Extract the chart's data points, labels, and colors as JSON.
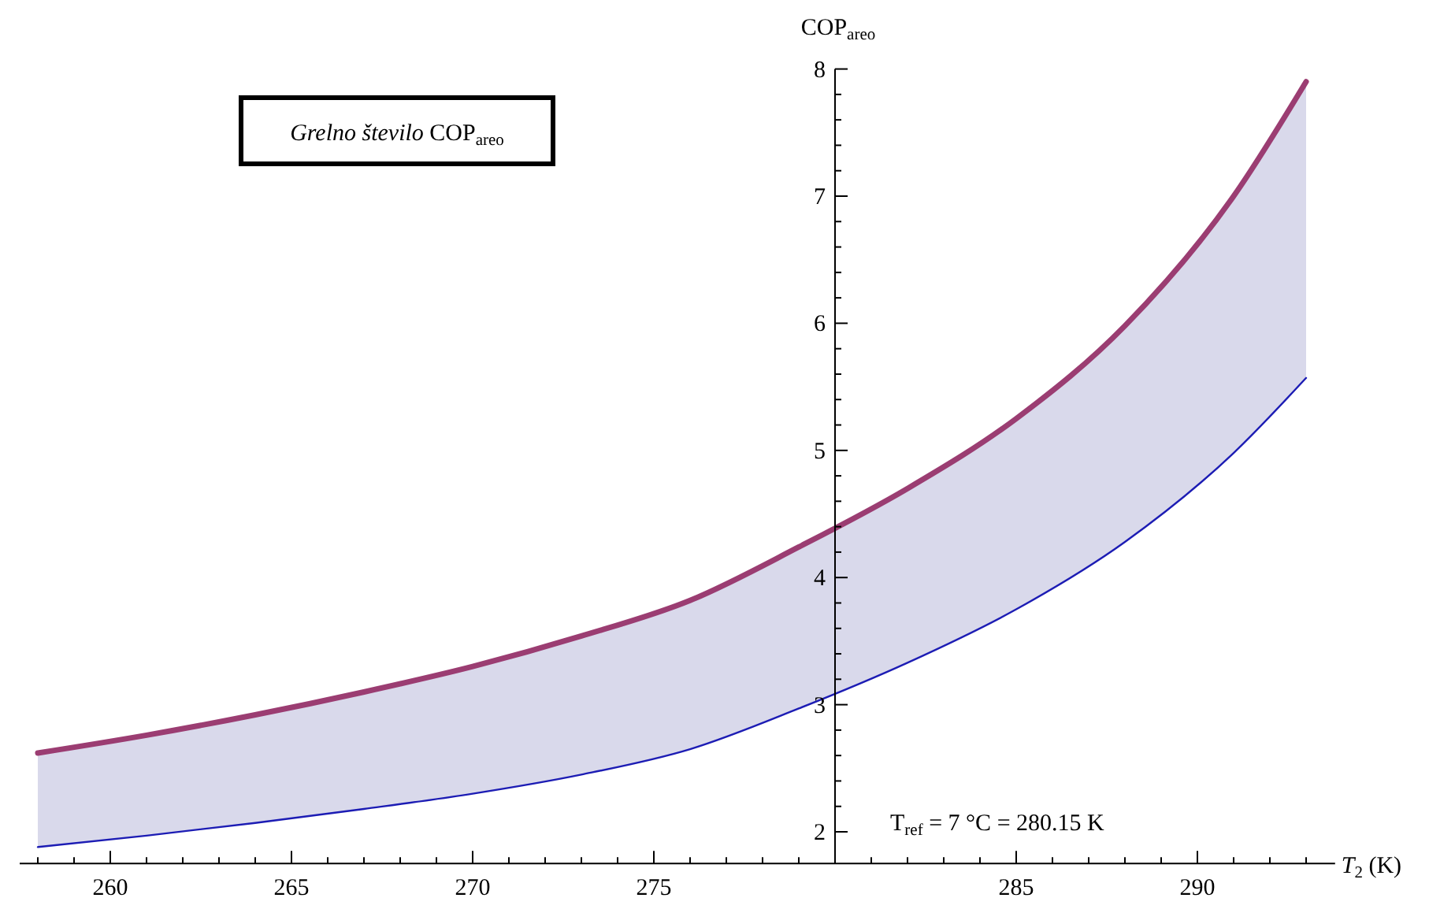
{
  "chart_data": {
    "type": "line",
    "title": "Grelno število COP$_{areo}$",
    "xlabel": "T$_{2}$ (K)",
    "ylabel": "COP$_{areo}$",
    "annotations": [
      "T$_{ref}$ = 7 °C = 280.15 K"
    ],
    "x": [
      258,
      261,
      264,
      267,
      270,
      273,
      276,
      279,
      282,
      285,
      288,
      291,
      293
    ],
    "series": [
      {
        "color": "#9b3d72",
        "values": [
          2.62,
          2.76,
          2.92,
          3.1,
          3.3,
          3.54,
          3.82,
          4.24,
          4.7,
          5.25,
          5.98,
          7.0,
          7.9
        ],
        "lower": [
          1.88,
          1.97,
          2.07,
          2.18,
          2.3,
          2.45,
          2.65,
          2.97,
          3.33,
          3.75,
          4.28,
          4.98,
          5.57
        ],
        "upper": [
          2.62,
          2.76,
          2.92,
          3.1,
          3.3,
          3.54,
          3.82,
          4.24,
          4.7,
          5.25,
          5.98,
          7.0,
          7.9
        ]
      },
      {
        "color": "#1c1cb4",
        "values": [
          1.88,
          1.97,
          2.07,
          2.18,
          2.3,
          2.45,
          2.65,
          2.97,
          3.33,
          3.75,
          4.28,
          4.98,
          5.57
        ]
      }
    ],
    "xlim": [
      257.5,
      293.8
    ],
    "ylim": [
      1.75,
      8
    ],
    "xticks": [
      260,
      265,
      270,
      275,
      {
        "value": 280,
        "label": null
      },
      285,
      290
    ],
    "yticks": [
      2,
      3,
      4,
      5,
      6,
      7,
      8
    ],
    "line_style": "solid"
  }
}
